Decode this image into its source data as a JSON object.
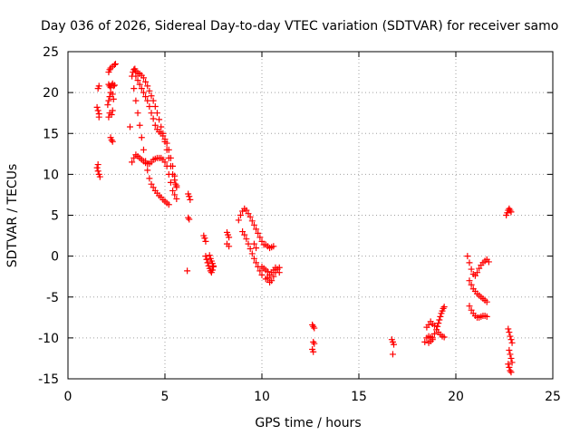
{
  "chart_data": {
    "type": "scatter",
    "title": "Day 036 of 2026, Sidereal Day-to-day VTEC variation (SDTVAR) for receiver samo",
    "xlabel": "GPS time / hours",
    "ylabel": "SDTVAR / TECUs",
    "xlim": [
      0,
      25
    ],
    "ylim": [
      -15,
      25
    ],
    "xticks": [
      "0",
      "5",
      "10",
      "15",
      "20",
      "25"
    ],
    "yticks": [
      "25",
      "20",
      "15",
      "10",
      "5",
      "0",
      "-5",
      "-10",
      "-15"
    ],
    "grid": true,
    "marker": "+",
    "color": "#ff0000",
    "series": [
      {
        "name": "SDTVAR",
        "x": [
          1.55,
          1.6,
          1.5,
          1.55,
          1.6,
          1.6,
          1.55,
          1.5,
          1.55,
          1.6,
          1.65,
          2.1,
          2.15,
          2.2,
          2.3,
          2.4,
          2.45,
          2.1,
          2.15,
          2.2,
          2.25,
          2.3,
          2.35,
          2.4,
          2.05,
          2.1,
          2.15,
          2.2,
          2.3,
          2.35,
          2.1,
          2.15,
          2.25,
          2.3,
          2.2,
          2.25,
          2.3,
          3.2,
          3.3,
          3.35,
          3.4,
          3.45,
          3.5,
          3.6,
          3.7,
          3.8,
          3.9,
          4.0,
          4.1,
          4.2,
          4.3,
          4.4,
          4.5,
          4.6,
          4.7,
          4.8,
          4.9,
          5.0,
          5.1,
          5.2,
          5.3,
          5.4,
          5.5,
          5.55,
          5.6,
          3.4,
          3.5,
          3.6,
          3.7,
          3.8,
          3.9,
          4.0,
          4.1,
          4.2,
          4.3,
          4.4,
          4.5,
          4.6,
          4.7,
          4.8,
          4.9,
          5.0,
          5.1,
          5.2,
          3.5,
          3.6,
          3.7,
          3.8,
          3.9,
          4.0,
          4.1,
          4.2,
          4.3,
          4.4,
          4.5,
          4.6,
          4.7,
          4.8,
          4.9,
          5.0,
          5.1,
          5.2,
          5.3,
          5.4,
          5.5,
          5.6,
          3.3,
          3.4,
          3.5,
          3.6,
          3.7,
          3.8,
          3.9,
          4.0,
          4.1,
          4.2,
          4.3,
          4.4,
          4.5,
          4.6,
          4.7,
          4.8,
          4.9,
          5.0,
          5.1,
          5.2,
          5.3,
          5.4,
          5.5,
          5.6,
          6.2,
          6.25,
          6.3,
          6.2,
          6.25,
          6.15,
          7.0,
          7.05,
          7.1,
          7.1,
          7.15,
          7.2,
          7.25,
          7.3,
          7.35,
          7.4,
          7.45,
          7.5,
          7.3,
          7.35,
          7.4,
          7.45,
          7.5,
          8.2,
          8.25,
          8.3,
          8.2,
          8.3,
          8.8,
          8.9,
          9.0,
          9.1,
          9.2,
          9.3,
          9.4,
          9.5,
          9.6,
          9.7,
          9.8,
          9.9,
          10.0,
          10.1,
          9.0,
          9.1,
          9.2,
          9.3,
          9.4,
          9.5,
          9.6,
          9.7,
          9.8,
          9.9,
          10.0,
          10.2,
          10.3,
          10.4,
          10.5,
          10.6,
          10.7,
          10.8,
          10.9,
          10.3,
          10.4,
          10.5,
          10.6,
          10.7,
          10.8,
          10.9,
          9.6,
          9.7,
          10.2,
          10.3,
          10.4,
          10.5,
          10.6,
          10.0,
          10.1,
          10.2,
          10.3,
          12.6,
          12.65,
          12.7,
          12.65,
          12.7,
          12.6,
          12.65,
          16.7,
          16.75,
          16.8,
          16.75,
          18.4,
          18.5,
          18.6,
          18.7,
          18.8,
          18.6,
          18.7,
          18.8,
          18.9,
          18.5,
          18.6,
          18.7,
          18.8,
          18.9,
          19.0,
          19.1,
          19.2,
          19.3,
          19.4,
          19.05,
          19.1,
          19.15,
          19.2,
          19.25,
          19.3,
          19.35,
          19.4,
          20.6,
          20.7,
          20.8,
          20.9,
          21.0,
          21.1,
          21.2,
          21.3,
          21.4,
          21.5,
          21.6,
          21.7,
          20.7,
          20.8,
          20.9,
          21.0,
          21.1,
          21.2,
          21.3,
          21.4,
          21.5,
          21.6,
          20.7,
          20.8,
          20.9,
          21.0,
          21.1,
          21.2,
          21.3,
          21.4,
          21.5,
          21.6,
          22.6,
          22.65,
          22.7,
          22.75,
          22.8,
          22.85,
          22.7,
          22.75,
          22.8,
          22.85,
          22.9,
          22.75,
          22.8,
          22.85,
          22.9,
          22.7,
          22.75,
          22.8,
          22.85
        ],
        "y": [
          20.5,
          20.8,
          18.2,
          17.8,
          17.4,
          17.0,
          11.2,
          10.8,
          10.4,
          10.0,
          9.7,
          22.5,
          22.8,
          23.0,
          23.2,
          23.4,
          23.5,
          21.0,
          20.8,
          20.6,
          20.9,
          21.1,
          20.8,
          20.9,
          18.5,
          19.0,
          19.5,
          20.0,
          19.8,
          19.2,
          17.0,
          17.5,
          17.3,
          17.8,
          14.5,
          14.2,
          14.0,
          15.8,
          22.0,
          22.5,
          22.8,
          22.9,
          22.6,
          22.4,
          22.3,
          22.1,
          21.8,
          21.3,
          20.8,
          20.2,
          19.6,
          19.0,
          18.3,
          17.5,
          16.7,
          15.8,
          15.0,
          14.0,
          13.0,
          12.0,
          11.0,
          10.0,
          9.3,
          8.8,
          8.4,
          20.5,
          19.0,
          17.5,
          16.0,
          14.5,
          13.0,
          11.6,
          10.5,
          9.5,
          8.8,
          8.4,
          8.0,
          7.7,
          7.4,
          7.2,
          6.9,
          6.7,
          6.5,
          6.3,
          22.0,
          21.5,
          21.0,
          20.5,
          20.0,
          19.5,
          19.0,
          18.3,
          17.5,
          16.8,
          16.0,
          15.5,
          15.2,
          15.0,
          14.7,
          14.3,
          13.8,
          13.0,
          12.0,
          11.0,
          9.8,
          8.6,
          11.5,
          12.0,
          12.4,
          12.2,
          12.0,
          11.8,
          11.6,
          11.4,
          11.3,
          11.3,
          11.5,
          11.8,
          11.9,
          12.0,
          12.0,
          12.0,
          11.8,
          11.5,
          11.0,
          10.0,
          9.0,
          8.0,
          7.5,
          7.0,
          7.6,
          7.3,
          6.9,
          4.7,
          4.5,
          -1.8,
          2.5,
          2.2,
          1.8,
          0.0,
          -0.4,
          -0.8,
          -1.2,
          -1.5,
          -1.8,
          -2.0,
          -1.7,
          -1.3,
          0.1,
          -0.3,
          -0.6,
          -0.9,
          -1.2,
          2.9,
          2.6,
          2.3,
          1.5,
          1.2,
          4.4,
          5.0,
          5.5,
          5.8,
          5.6,
          5.2,
          4.8,
          4.3,
          3.8,
          3.3,
          2.8,
          2.3,
          1.8,
          1.4,
          3.0,
          2.6,
          2.1,
          1.5,
          0.9,
          0.3,
          -0.3,
          -0.8,
          -1.3,
          -1.8,
          -2.3,
          -2.8,
          -2.6,
          -2.3,
          -2.0,
          -1.7,
          -1.4,
          -1.6,
          -2.0,
          -2.8,
          -3.2,
          -3.0,
          -2.5,
          -2.0,
          -1.6,
          -1.4,
          1.5,
          1.0,
          1.4,
          1.2,
          1.0,
          1.1,
          1.2,
          -1.3,
          -1.5,
          -1.7,
          -1.9,
          -8.4,
          -8.6,
          -8.8,
          -10.5,
          -10.7,
          -11.4,
          -11.7,
          -10.2,
          -10.5,
          -10.8,
          -12.0,
          -10.5,
          -10.0,
          -9.8,
          -9.9,
          -10.2,
          -10.6,
          -10.4,
          -10.0,
          -9.5,
          -8.7,
          -8.4,
          -8.0,
          -8.3,
          -8.5,
          -9.0,
          -9.3,
          -9.6,
          -9.8,
          -9.9,
          -8.6,
          -8.2,
          -7.8,
          -7.4,
          -7.0,
          -6.7,
          -6.4,
          -6.2,
          0.0,
          -0.8,
          -1.6,
          -2.2,
          -2.4,
          -2.0,
          -1.5,
          -1.1,
          -0.8,
          -0.6,
          -0.4,
          -0.7,
          -3.0,
          -3.5,
          -4.0,
          -4.3,
          -4.6,
          -4.8,
          -5.0,
          -5.2,
          -5.4,
          -5.6,
          -6.1,
          -6.6,
          -7.0,
          -7.3,
          -7.5,
          -7.5,
          -7.4,
          -7.3,
          -7.3,
          -7.4,
          5.0,
          5.3,
          5.6,
          5.8,
          5.6,
          5.4,
          -8.9,
          -9.3,
          -9.8,
          -10.2,
          -10.6,
          -11.5,
          -12.0,
          -12.5,
          -13.0,
          -13.2,
          -13.6,
          -14.0,
          -14.2
        ],
        "color": "#ff0000"
      }
    ]
  }
}
